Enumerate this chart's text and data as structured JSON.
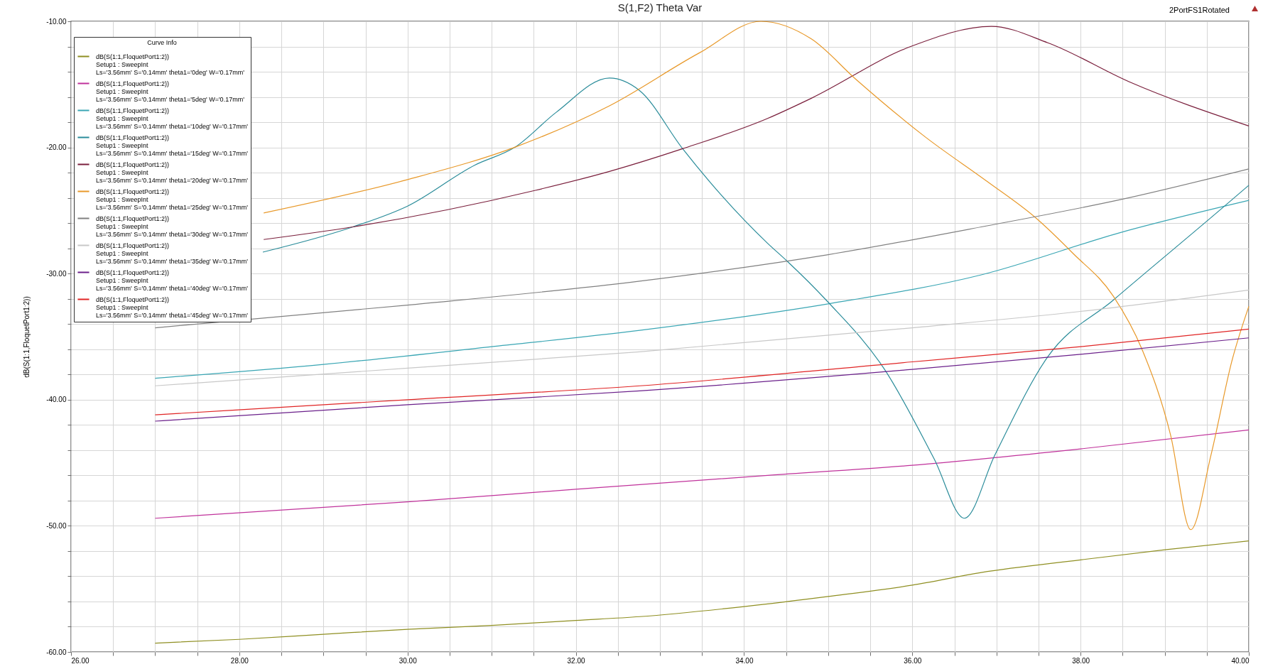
{
  "chart_data": {
    "type": "line",
    "title": "S(1,F2) Theta Var",
    "ylabel": "dB(S(1:1,FloquetPort1:2))",
    "legend_title": "Curve Info",
    "annotations": [
      "2PortFS1Rotated"
    ],
    "legend": "top left",
    "grid": true,
    "line_style": "solid",
    "xlim": [
      26,
      40
    ],
    "ylim": [
      -60,
      -10
    ],
    "xticks": [
      {
        "value": 26,
        "label": "26.00"
      },
      {
        "value": 26.5,
        "label": null
      },
      {
        "value": 27,
        "label": null
      },
      {
        "value": 27.5,
        "label": null
      },
      {
        "value": 28,
        "label": "28.00"
      },
      {
        "value": 28.5,
        "label": null
      },
      {
        "value": 29,
        "label": null
      },
      {
        "value": 29.5,
        "label": null
      },
      {
        "value": 30,
        "label": "30.00"
      },
      {
        "value": 30.5,
        "label": null
      },
      {
        "value": 31,
        "label": null
      },
      {
        "value": 31.5,
        "label": null
      },
      {
        "value": 32,
        "label": "32.00"
      },
      {
        "value": 32.5,
        "label": null
      },
      {
        "value": 33,
        "label": null
      },
      {
        "value": 33.5,
        "label": null
      },
      {
        "value": 34,
        "label": "34.00"
      },
      {
        "value": 34.5,
        "label": null
      },
      {
        "value": 35,
        "label": null
      },
      {
        "value": 35.5,
        "label": null
      },
      {
        "value": 36,
        "label": "36.00"
      },
      {
        "value": 36.5,
        "label": null
      },
      {
        "value": 37,
        "label": null
      },
      {
        "value": 37.5,
        "label": null
      },
      {
        "value": 38,
        "label": "38.00"
      },
      {
        "value": 38.5,
        "label": null
      },
      {
        "value": 39,
        "label": null
      },
      {
        "value": 39.5,
        "label": null
      },
      {
        "value": 40,
        "label": "40.00"
      }
    ],
    "yticks": [
      {
        "value": -60,
        "label": "-60.00"
      },
      {
        "value": -58,
        "label": null
      },
      {
        "value": -56,
        "label": null
      },
      {
        "value": -54,
        "label": null
      },
      {
        "value": -52,
        "label": null
      },
      {
        "value": -50,
        "label": "-50.00"
      },
      {
        "value": -48,
        "label": null
      },
      {
        "value": -46,
        "label": null
      },
      {
        "value": -44,
        "label": null
      },
      {
        "value": -42,
        "label": null
      },
      {
        "value": -40,
        "label": "-40.00"
      },
      {
        "value": -38,
        "label": null
      },
      {
        "value": -36,
        "label": null
      },
      {
        "value": -34,
        "label": null
      },
      {
        "value": -32,
        "label": null
      },
      {
        "value": -30,
        "label": "-30.00"
      },
      {
        "value": -28,
        "label": null
      },
      {
        "value": -26,
        "label": null
      },
      {
        "value": -24,
        "label": null
      },
      {
        "value": -22,
        "label": null
      },
      {
        "value": -20,
        "label": "-20.00"
      },
      {
        "value": -18,
        "label": null
      },
      {
        "value": -16,
        "label": null
      },
      {
        "value": -14,
        "label": null
      },
      {
        "value": -12,
        "label": null
      },
      {
        "value": -10,
        "label": "-10.00"
      }
    ],
    "series": [
      {
        "name": "dB(S(1:1,FloquetPort1:2))\nSetup1 : SweepInt\nLs='3.56mm' S='0.14mm' theta1='0deg' W='0.17mm'",
        "color": "#8f8f22",
        "x": [
          27,
          28,
          29,
          30,
          31,
          32,
          32.76,
          34,
          35,
          36,
          36.82,
          38,
          39,
          40
        ],
        "values": [
          -59.3,
          -59.0,
          -58.6,
          -58.2,
          -57.9,
          -57.5,
          -57.2,
          -56.4,
          -55.6,
          -54.7,
          -53.7,
          -52.7,
          -51.9,
          -51.2
        ]
      },
      {
        "name": "dB(S(1:1,FloquetPort1:2))\nSetup1 : SweepInt\nLs='3.56mm' S='0.14mm' theta1='5deg' W='0.17mm'",
        "color": "#c0329b",
        "x": [
          27,
          30,
          32,
          34.28,
          36,
          38,
          40
        ],
        "values": [
          -49.4,
          -48.1,
          -47.1,
          -46.0,
          -45.2,
          -43.9,
          -42.4
        ]
      },
      {
        "name": "dB(S(1:1,FloquetPort1:2))\nSetup1 : SweepInt\nLs='3.56mm' S='0.14mm' theta1='10deg' W='0.17mm'",
        "color": "#3aa6b4",
        "x": [
          27,
          29,
          31,
          32.76,
          35,
          36.82,
          38.5,
          40
        ],
        "values": [
          -38.3,
          -37.2,
          -35.8,
          -34.5,
          -32.4,
          -30.1,
          -26.7,
          -24.2
        ]
      },
      {
        "name": "dB(S(1:1,FloquetPort1:2))\nSetup1 : SweepInt\nLs='3.56mm' S='0.14mm' theta1='15deg' W='0.17mm'",
        "color": "#2a8c9a",
        "x": [
          28.28,
          29.35,
          30.0,
          30.8,
          31.28,
          31.77,
          32.4,
          32.76,
          33.27,
          34.28,
          34.51,
          34.99,
          35.67,
          36.26,
          36.62,
          36.98,
          37.61,
          38.39,
          39.65,
          40.0
        ],
        "values": [
          -28.3,
          -26.3,
          -24.65,
          -21.4,
          -19.97,
          -17.2,
          -14.5,
          -15.5,
          -20.1,
          -27.6,
          -29.0,
          -32.2,
          -37.6,
          -44.7,
          -49.4,
          -44.4,
          -36.6,
          -32.1,
          -25.0,
          -23.0
        ]
      },
      {
        "name": "dB(S(1:1,FloquetPort1:2))\nSetup1 : SweepInt\nLs='3.56mm' S='0.14mm' theta1='20deg' W='0.17mm'",
        "color": "#7a1f3c",
        "x": [
          28.29,
          29.35,
          31.52,
          32.4,
          33.27,
          34.28,
          34.8,
          35.98,
          36.94,
          37.61,
          38.58,
          40.0
        ],
        "values": [
          -27.3,
          -26.3,
          -23.4,
          -21.9,
          -20.1,
          -17.7,
          -16.1,
          -12.0,
          -10.4,
          -11.7,
          -14.8,
          -18.3
        ]
      },
      {
        "name": "dB(S(1:1,FloquetPort1:2))\nSetup1 : SweepInt\nLs='3.56mm' S='0.14mm' theta1='25deg' W='0.17mm'",
        "color": "#e8992a",
        "x": [
          28.29,
          30.0,
          31.28,
          32.4,
          33.47,
          34.2,
          34.8,
          35.33,
          36.16,
          36.89,
          37.47,
          37.91,
          38.39,
          38.73,
          39.07,
          39.31,
          39.55,
          39.8,
          40.0
        ],
        "values": [
          -25.2,
          -22.55,
          -19.97,
          -16.7,
          -12.5,
          -10.0,
          -11.4,
          -14.6,
          -19.2,
          -22.7,
          -25.6,
          -28.4,
          -31.8,
          -36.0,
          -42.8,
          -50.3,
          -44.4,
          -36.9,
          -32.6
        ]
      },
      {
        "name": "dB(S(1:1,FloquetPort1:2))\nSetup1 : SweepInt\nLs='3.56mm' S='0.14mm' theta1='30deg' W='0.17mm'",
        "color": "#808080",
        "x": [
          27,
          30,
          32.76,
          35,
          36.82,
          38.5,
          40
        ],
        "values": [
          -34.3,
          -32.5,
          -30.6,
          -28.5,
          -26.3,
          -24.1,
          -21.7
        ]
      },
      {
        "name": "dB(S(1:1,FloquetPort1:2))\nSetup1 : SweepInt\nLs='3.56mm' S='0.14mm' theta1='35deg' W='0.17mm'",
        "color": "#c8c8c8",
        "x": [
          27,
          30,
          32.76,
          36,
          38,
          40
        ],
        "values": [
          -38.9,
          -37.5,
          -36.2,
          -34.3,
          -33.0,
          -31.3
        ]
      },
      {
        "name": "dB(S(1:1,FloquetPort1:2))\nSetup1 : SweepInt\nLs='3.56mm' S='0.14mm' theta1='40deg' W='0.17mm'",
        "color": "#6a1f8a",
        "x": [
          27,
          30,
          32.76,
          36,
          38,
          40
        ],
        "values": [
          -41.7,
          -40.4,
          -39.3,
          -37.6,
          -36.4,
          -35.1
        ]
      },
      {
        "name": "dB(S(1:1,FloquetPort1:2))\nSetup1 : SweepInt\nLs='3.56mm' S='0.14mm' theta1='45deg' W='0.17mm'",
        "color": "#e02424",
        "x": [
          27,
          30,
          32.76,
          36,
          38,
          40
        ],
        "values": [
          -41.2,
          -40.0,
          -38.9,
          -37.0,
          -35.8,
          -34.4
        ]
      }
    ]
  }
}
